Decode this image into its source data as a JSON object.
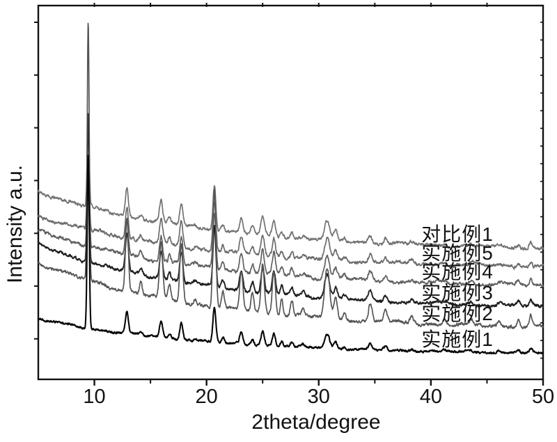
{
  "figure": {
    "background": "#ffffff",
    "frame_color": "#111111"
  },
  "chart_data": {
    "type": "line",
    "title": "",
    "xlabel": "2theta/degree",
    "ylabel": "Intensity a.u.",
    "x_range": [
      5,
      50
    ],
    "x_major_ticks": [
      10,
      20,
      30,
      40,
      50
    ],
    "x_minor_ticks": [
      15,
      25,
      35,
      45
    ],
    "y_tick_labels": "none (arbitrary units)",
    "ylim_au": [
      0,
      537
    ],
    "grid": false,
    "legend_position": "inline-labels-right",
    "description": "Six stacked XRD powder diffraction traces sharing the same reflection positions, vertically offset; intensity in arbitrary units",
    "series": [
      {
        "label": "对比例1",
        "color": "#727272",
        "baseline_au": 189,
        "lowangle_rise_au": 81,
        "main_peak_amp_au": 130,
        "secondary_peak_scale_au": 65,
        "noise_au": 1.7,
        "wave_au": 1.7,
        "stroke_width": 1.7
      },
      {
        "label": "实施例5",
        "color": "#6b6b6b",
        "baseline_au": 162,
        "lowangle_rise_au": 73,
        "main_peak_amp_au": 150,
        "secondary_peak_scale_au": 72,
        "noise_au": 1.8,
        "wave_au": 1.8,
        "stroke_width": 1.7
      },
      {
        "label": "实施例4",
        "color": "#606060",
        "baseline_au": 135,
        "lowangle_rise_au": 78,
        "main_peak_amp_au": 188,
        "secondary_peak_scale_au": 80,
        "noise_au": 1.8,
        "wave_au": 1.8,
        "stroke_width": 1.7
      },
      {
        "label": "实施例3",
        "color": "#1f1f1f",
        "baseline_au": 105,
        "lowangle_rise_au": 88,
        "main_peak_amp_au": 215,
        "secondary_peak_scale_au": 88,
        "noise_au": 1.6,
        "wave_au": 1.6,
        "stroke_width": 1.9
      },
      {
        "label": "实施例2",
        "color": "#555555",
        "baseline_au": 75,
        "lowangle_rise_au": 92,
        "main_peak_amp_au": 370,
        "secondary_peak_scale_au": 170,
        "noise_au": 1.8,
        "wave_au": 1.8,
        "stroke_width": 1.7
      },
      {
        "label": "实施例1",
        "color": "#060606",
        "baseline_au": 38,
        "lowangle_rise_au": 49,
        "main_peak_amp_au": 250,
        "secondary_peak_scale_au": 50,
        "noise_au": 1.2,
        "wave_au": 1.0,
        "stroke_width": 2.1
      }
    ],
    "shared_peaks_2theta": [
      {
        "pos": 9.45,
        "main": true,
        "sigma": 0.09
      },
      {
        "pos": 12.9,
        "rel": 0.62,
        "sigma": 0.13
      },
      {
        "pos": 14.15,
        "rel": 0.1,
        "sigma": 0.12
      },
      {
        "pos": 15.95,
        "rel": 0.46,
        "sigma": 0.14
      },
      {
        "pos": 16.7,
        "rel": 0.12,
        "sigma": 0.12
      },
      {
        "pos": 17.75,
        "rel": 0.5,
        "sigma": 0.14
      },
      {
        "pos": 19.0,
        "rel": 0.05,
        "sigma": 0.12
      },
      {
        "pos": 20.7,
        "rel": 1.0,
        "sigma": 0.13
      },
      {
        "pos": 21.45,
        "rel": 0.14,
        "sigma": 0.12
      },
      {
        "pos": 23.1,
        "rel": 0.32,
        "sigma": 0.15
      },
      {
        "pos": 24.1,
        "rel": 0.16,
        "sigma": 0.13
      },
      {
        "pos": 25.0,
        "rel": 0.4,
        "sigma": 0.15
      },
      {
        "pos": 26.0,
        "rel": 0.36,
        "sigma": 0.14
      },
      {
        "pos": 26.7,
        "rel": 0.14,
        "sigma": 0.12
      },
      {
        "pos": 27.6,
        "rel": 0.13,
        "sigma": 0.13
      },
      {
        "pos": 28.6,
        "rel": 0.06,
        "sigma": 0.13
      },
      {
        "pos": 30.75,
        "rel": 0.42,
        "sigma": 0.22
      },
      {
        "pos": 31.5,
        "rel": 0.18,
        "sigma": 0.15
      },
      {
        "pos": 32.3,
        "rel": 0.07,
        "sigma": 0.13
      },
      {
        "pos": 34.6,
        "rel": 0.15,
        "sigma": 0.16
      },
      {
        "pos": 35.95,
        "rel": 0.11,
        "sigma": 0.15
      },
      {
        "pos": 38.3,
        "rel": 0.06,
        "sigma": 0.15
      },
      {
        "pos": 41.2,
        "rel": 0.04,
        "sigma": 0.15
      },
      {
        "pos": 43.6,
        "rel": 0.04,
        "sigma": 0.15
      },
      {
        "pos": 46.1,
        "rel": 0.04,
        "sigma": 0.15
      },
      {
        "pos": 47.8,
        "rel": 0.07,
        "sigma": 0.14
      },
      {
        "pos": 48.9,
        "rel": 0.1,
        "sigma": 0.13
      }
    ]
  }
}
